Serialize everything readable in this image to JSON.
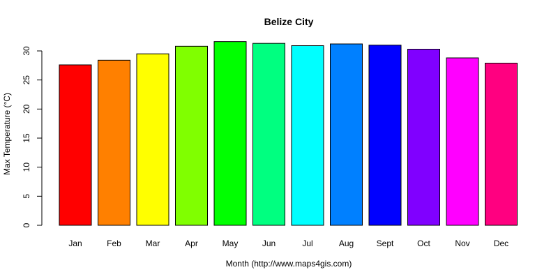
{
  "chart_data": {
    "type": "bar",
    "title": "Belize City",
    "xlabel": "Month (http://www.maps4gis.com)",
    "ylabel": "Max Temperature (°C)",
    "ylim": [
      0,
      30
    ],
    "yticks": [
      "0",
      "5",
      "10",
      "15",
      "20",
      "25",
      "30"
    ],
    "categories": [
      "Jan",
      "Feb",
      "Mar",
      "Apr",
      "May",
      "Jun",
      "Jul",
      "Aug",
      "Sept",
      "Oct",
      "Nov",
      "Dec"
    ],
    "values": [
      27.6,
      28.4,
      29.5,
      30.8,
      31.6,
      31.3,
      30.9,
      31.2,
      31.0,
      30.3,
      28.8,
      27.9
    ],
    "colors": [
      "#FF0000",
      "#FF8000",
      "#FFFF00",
      "#80FF00",
      "#00FF00",
      "#00FF80",
      "#00FFFF",
      "#0080FF",
      "#0000FF",
      "#8000FF",
      "#FF00FF",
      "#FF0080"
    ],
    "grid": false,
    "legend": "none"
  }
}
